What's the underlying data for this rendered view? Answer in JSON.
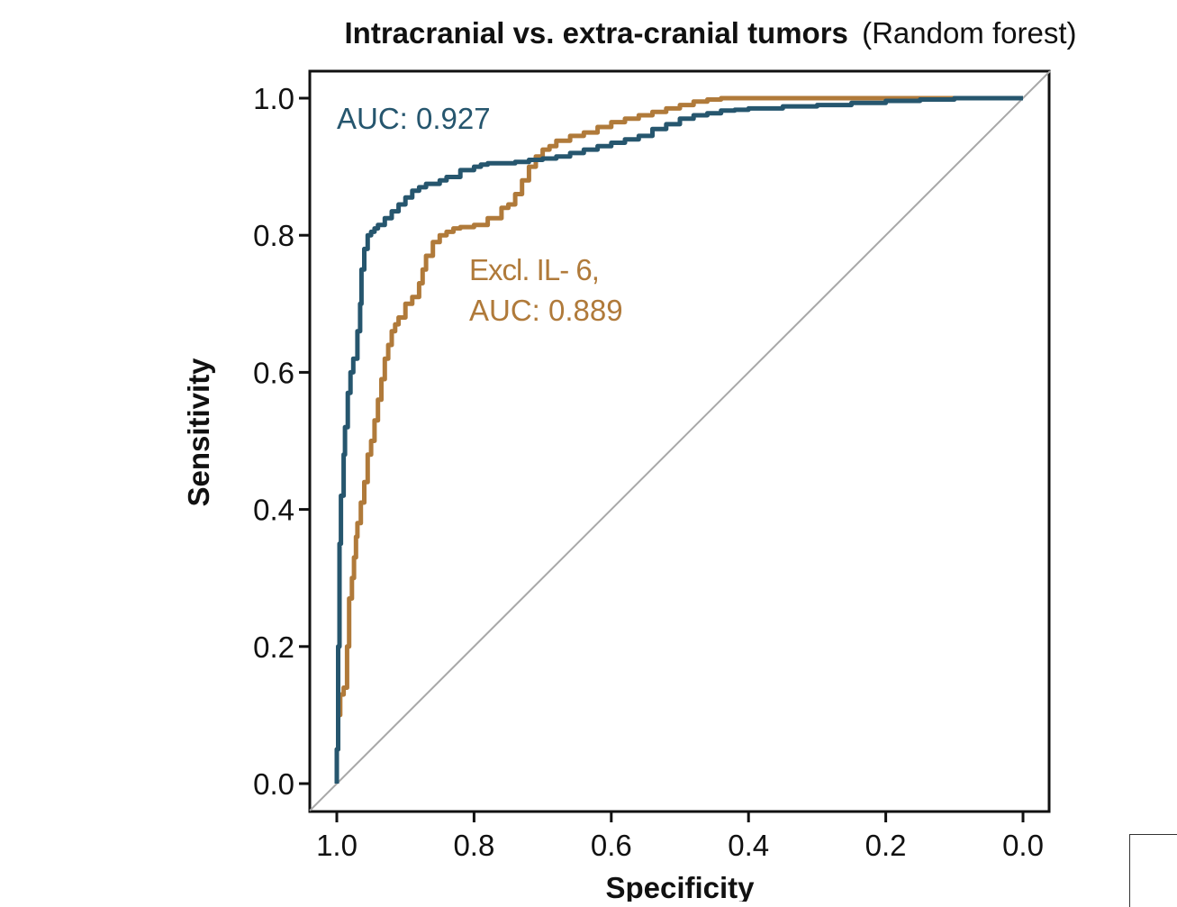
{
  "chart_data": {
    "type": "line",
    "title_bold": "Intracranial vs. extra-cranial tumors",
    "title_regular": "(Random forest)",
    "xlabel": "Specificity",
    "ylabel": "Sensitivity",
    "xlim": [
      1.0,
      0.0
    ],
    "ylim": [
      0.0,
      1.0
    ],
    "x_reversed": true,
    "x_ticks": [
      "1.0",
      "0.8",
      "0.6",
      "0.4",
      "0.2",
      "0.0"
    ],
    "y_ticks": [
      "0.0",
      "0.2",
      "0.4",
      "0.6",
      "0.8",
      "1.0"
    ],
    "x_tick_values": [
      1.0,
      0.8,
      0.6,
      0.4,
      0.2,
      0.0
    ],
    "y_tick_values": [
      0.0,
      0.2,
      0.4,
      0.6,
      0.8,
      1.0
    ],
    "grid": false,
    "reference_line": {
      "from": [
        1.0,
        0.0
      ],
      "to": [
        0.0,
        1.0
      ],
      "color": "#a8a8a8"
    },
    "series": [
      {
        "annotation_line1": "AUC: 0.927",
        "color": "#26566e",
        "specificity": [
          1.0,
          1.0,
          0.998,
          0.996,
          0.994,
          0.99,
          0.988,
          0.984,
          0.98,
          0.976,
          0.97,
          0.966,
          0.964,
          0.96,
          0.955,
          0.95,
          0.945,
          0.94,
          0.93,
          0.92,
          0.91,
          0.9,
          0.89,
          0.88,
          0.87,
          0.86,
          0.85,
          0.84,
          0.82,
          0.8,
          0.79,
          0.78,
          0.76,
          0.74,
          0.72,
          0.7,
          0.68,
          0.66,
          0.64,
          0.62,
          0.6,
          0.58,
          0.56,
          0.54,
          0.52,
          0.5,
          0.48,
          0.46,
          0.44,
          0.42,
          0.4,
          0.35,
          0.3,
          0.25,
          0.2,
          0.15,
          0.1,
          0.05,
          0.0
        ],
        "sensitivity": [
          0.0,
          0.05,
          0.2,
          0.35,
          0.42,
          0.48,
          0.52,
          0.57,
          0.6,
          0.62,
          0.66,
          0.7,
          0.75,
          0.78,
          0.8,
          0.805,
          0.81,
          0.815,
          0.825,
          0.835,
          0.845,
          0.855,
          0.865,
          0.87,
          0.875,
          0.875,
          0.88,
          0.885,
          0.895,
          0.9,
          0.903,
          0.905,
          0.905,
          0.907,
          0.91,
          0.912,
          0.915,
          0.92,
          0.925,
          0.93,
          0.935,
          0.94,
          0.945,
          0.955,
          0.962,
          0.97,
          0.975,
          0.978,
          0.982,
          0.983,
          0.985,
          0.988,
          0.99,
          0.993,
          0.996,
          0.998,
          1.0,
          1.0,
          1.0
        ]
      },
      {
        "annotation_line1": "Excl. IL- 6,",
        "annotation_line2": "AUC: 0.889",
        "color": "#b07a3a",
        "specificity": [
          1.0,
          1.0,
          0.998,
          0.995,
          0.99,
          0.985,
          0.982,
          0.978,
          0.975,
          0.972,
          0.97,
          0.965,
          0.96,
          0.955,
          0.95,
          0.945,
          0.94,
          0.935,
          0.93,
          0.925,
          0.92,
          0.915,
          0.91,
          0.9,
          0.89,
          0.88,
          0.875,
          0.87,
          0.86,
          0.85,
          0.84,
          0.83,
          0.82,
          0.8,
          0.78,
          0.76,
          0.75,
          0.74,
          0.73,
          0.72,
          0.71,
          0.7,
          0.69,
          0.68,
          0.66,
          0.64,
          0.62,
          0.6,
          0.58,
          0.56,
          0.54,
          0.52,
          0.5,
          0.48,
          0.46,
          0.44,
          0.42,
          0.4,
          0.35,
          0.3,
          0.25,
          0.2,
          0.15,
          0.1,
          0.05,
          0.0
        ],
        "sensitivity": [
          0.0,
          0.05,
          0.1,
          0.13,
          0.14,
          0.2,
          0.27,
          0.3,
          0.33,
          0.36,
          0.38,
          0.41,
          0.44,
          0.48,
          0.5,
          0.53,
          0.56,
          0.59,
          0.62,
          0.64,
          0.66,
          0.67,
          0.68,
          0.7,
          0.71,
          0.73,
          0.75,
          0.77,
          0.79,
          0.8,
          0.805,
          0.81,
          0.812,
          0.815,
          0.825,
          0.84,
          0.845,
          0.86,
          0.88,
          0.9,
          0.915,
          0.925,
          0.93,
          0.938,
          0.945,
          0.95,
          0.958,
          0.965,
          0.97,
          0.975,
          0.98,
          0.985,
          0.99,
          0.995,
          0.998,
          1.0,
          1.0,
          1.0,
          1.0,
          1.0,
          1.0,
          1.0,
          1.0,
          1.0,
          1.0,
          1.0
        ]
      }
    ]
  }
}
